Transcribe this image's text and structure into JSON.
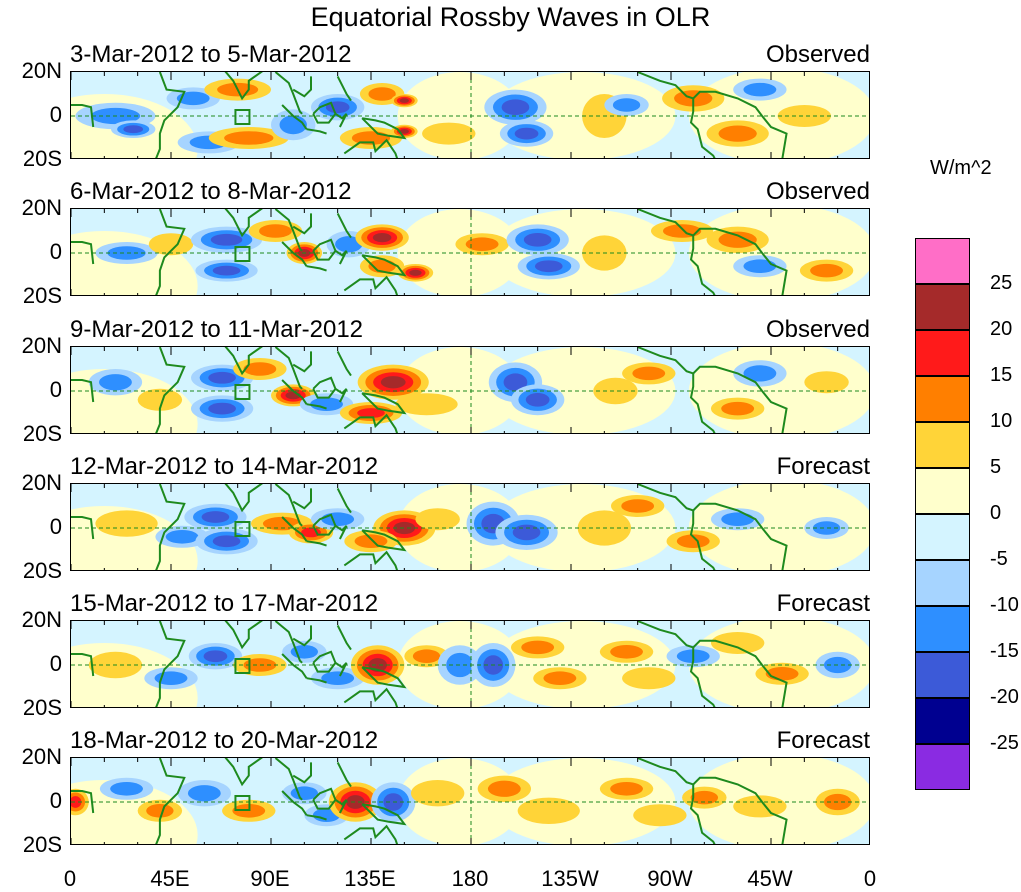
{
  "title": "Equatorial Rossby Waves in OLR",
  "lat_labels": [
    "20N",
    "0",
    "20S"
  ],
  "lon_labels": [
    "0",
    "45E",
    "90E",
    "135E",
    "180",
    "135W",
    "90W",
    "45W",
    "0"
  ],
  "panels": [
    {
      "date": "3-Mar-2012 to 5-Mar-2012",
      "type": "Observed"
    },
    {
      "date": "6-Mar-2012 to 8-Mar-2012",
      "type": "Observed"
    },
    {
      "date": "9-Mar-2012 to 11-Mar-2012",
      "type": "Observed"
    },
    {
      "date": "12-Mar-2012 to 14-Mar-2012",
      "type": "Forecast"
    },
    {
      "date": "15-Mar-2012 to 17-Mar-2012",
      "type": "Forecast"
    },
    {
      "date": "18-Mar-2012 to 20-Mar-2012",
      "type": "Forecast"
    }
  ],
  "colorbar": {
    "unit": "W/m^2",
    "labels": [
      "25",
      "20",
      "15",
      "10",
      "5",
      "0",
      "-5",
      "-10",
      "-15",
      "-20",
      "-25"
    ],
    "colors": [
      "#ff6ec7",
      "#a52a2a",
      "#ff1a1a",
      "#ff7f00",
      "#ffd438",
      "#ffffcc",
      "#d4f4ff",
      "#a6d4ff",
      "#2e8fff",
      "#3c5ad8",
      "#000090",
      "#8a2be2"
    ]
  },
  "map_colors": {
    "pos1": "#ffffcc",
    "pos2": "#ffd438",
    "pos3": "#ff7f00",
    "pos4": "#ff1a1a",
    "pos5": "#a52a2a",
    "neg1": "#d4f4ff",
    "neg2": "#a6d4ff",
    "neg3": "#2e8fff",
    "neg4": "#3c5ad8",
    "coast": "#1e8a1e"
  }
}
